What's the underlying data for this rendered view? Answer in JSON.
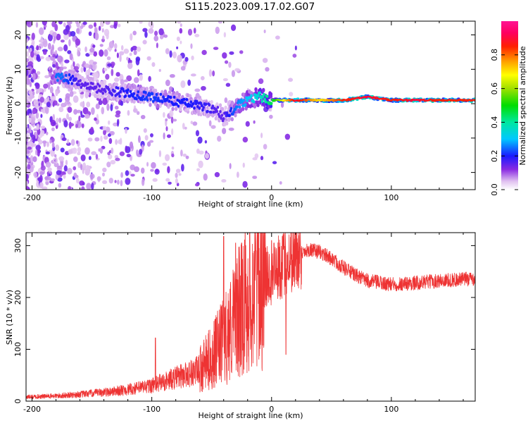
{
  "title": "S115.2023.009.17.02.G07",
  "chart_data": [
    {
      "type": "heatmap",
      "name": "spectrogram",
      "xlabel": "Height of straight line (km)",
      "ylabel": "Frequency (Hz)",
      "xlim": [
        -205,
        170
      ],
      "ylim": [
        -25,
        24
      ],
      "xticks": [
        -200,
        -100,
        0,
        100
      ],
      "yticks": [
        -20,
        -10,
        0,
        10,
        20
      ],
      "colorbar": {
        "label": "Normalized spectral amplitude",
        "range": [
          0,
          1
        ],
        "ticks": [
          "0.0",
          "0.2",
          "0.4",
          "0.6",
          "0.8"
        ],
        "tick_values": [
          0.0,
          0.2,
          0.4,
          0.6,
          0.8
        ],
        "colormap": "gist_ncar_r"
      },
      "ridge": {
        "x": [
          -175,
          -160,
          -140,
          -120,
          -100,
          -85,
          -70,
          -55,
          -45,
          -40,
          -35,
          -30,
          -20,
          -10,
          0,
          20,
          40,
          60,
          80,
          100,
          120,
          140,
          170
        ],
        "y": [
          8,
          6,
          4,
          3,
          2,
          1,
          0,
          -1,
          -2,
          -4,
          -3,
          -1,
          1,
          2,
          1,
          1,
          1,
          1,
          2,
          1,
          1,
          1,
          1
        ],
        "amplitude": [
          0.25,
          0.15,
          0.15,
          0.2,
          0.22,
          0.2,
          0.2,
          0.18,
          0.15,
          0.15,
          0.2,
          0.25,
          0.3,
          0.35,
          0.45,
          0.9,
          0.7,
          0.85,
          0.9,
          0.85,
          0.9,
          0.85,
          0.85
        ]
      }
    },
    {
      "type": "line",
      "name": "snr",
      "xlabel": "Height of straight line (km)",
      "ylabel": "SNR (10 * v/v)",
      "xlim": [
        -205,
        170
      ],
      "ylim": [
        0,
        325
      ],
      "xticks": [
        -200,
        -100,
        0,
        100
      ],
      "yticks": [
        0,
        100,
        200,
        300
      ],
      "color": "#ee3333",
      "envelope_x": [
        -205,
        -180,
        -160,
        -140,
        -120,
        -100,
        -80,
        -60,
        -50,
        -40,
        -30,
        -20,
        -10,
        0,
        10,
        20,
        30,
        40,
        50,
        60,
        70,
        80,
        100,
        120,
        140,
        160,
        170
      ],
      "envelope_y": [
        8,
        10,
        13,
        17,
        22,
        30,
        45,
        60,
        85,
        115,
        160,
        200,
        230,
        245,
        265,
        282,
        292,
        288,
        275,
        258,
        243,
        232,
        225,
        228,
        232,
        235,
        237
      ],
      "spikes_x": [
        -97,
        -40,
        -30,
        -25,
        -13,
        0,
        2,
        9,
        12
      ],
      "spikes_y": [
        122,
        318,
        305,
        305,
        290,
        310,
        305,
        318,
        90
      ]
    }
  ]
}
